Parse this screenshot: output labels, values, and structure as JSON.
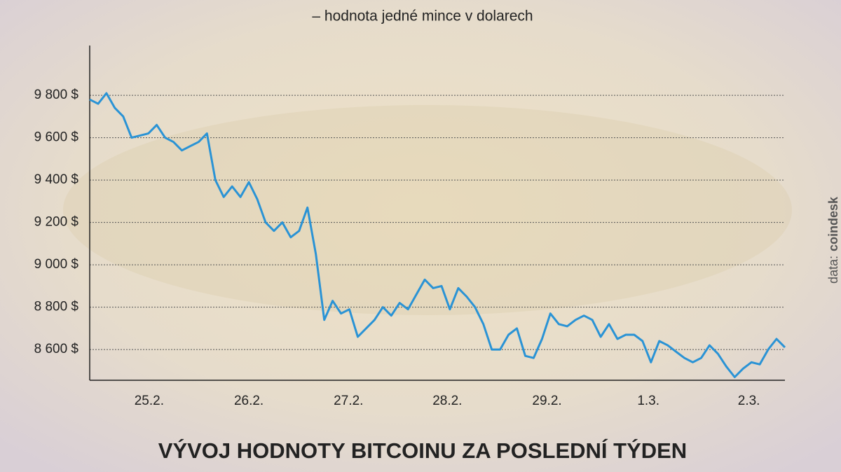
{
  "chart_data": {
    "type": "line",
    "title": "VÝVOJ HODNOTY BITCOINU ZA POSLEDNÍ TÝDEN",
    "subtitle": "– hodnota jedné mince v dolarech",
    "source_prefix": "data:",
    "source": "coindesk",
    "color": "#2a93d5",
    "grid": true,
    "ylim": [
      8455,
      10035
    ],
    "yticks": [
      {
        "value": 8600,
        "label": "8 600 $"
      },
      {
        "value": 8800,
        "label": "8 800 $"
      },
      {
        "value": 9000,
        "label": "9 000 $"
      },
      {
        "value": 9200,
        "label": "9 200 $"
      },
      {
        "value": 9400,
        "label": "9 400 $"
      },
      {
        "value": 9600,
        "label": "9 600 $"
      },
      {
        "value": 9800,
        "label": "9 800 $"
      }
    ],
    "xlim": [
      0,
      83
    ],
    "xticks": [
      {
        "value": 7.1,
        "label": "25.2."
      },
      {
        "value": 19,
        "label": "26.2."
      },
      {
        "value": 30.9,
        "label": "27.2."
      },
      {
        "value": 42.7,
        "label": "28.2."
      },
      {
        "value": 54.6,
        "label": "29.2."
      },
      {
        "value": 66.7,
        "label": "1.3."
      },
      {
        "value": 78.7,
        "label": "2.3."
      }
    ],
    "values": [
      9780,
      9760,
      9810,
      9740,
      9700,
      9600,
      9610,
      9620,
      9660,
      9600,
      9580,
      9540,
      9560,
      9580,
      9620,
      9400,
      9320,
      9370,
      9320,
      9390,
      9310,
      9200,
      9160,
      9200,
      9130,
      9160,
      9270,
      9050,
      8740,
      8830,
      8770,
      8790,
      8660,
      8700,
      8740,
      8800,
      8760,
      8820,
      8790,
      8860,
      8930,
      8890,
      8900,
      8790,
      8890,
      8850,
      8800,
      8720,
      8600,
      8600,
      8670,
      8700,
      8570,
      8560,
      8650,
      8770,
      8720,
      8710,
      8740,
      8760,
      8740,
      8660,
      8720,
      8650,
      8670,
      8670,
      8640,
      8540,
      8640,
      8620,
      8590,
      8560,
      8540,
      8560,
      8620,
      8580,
      8520,
      8470,
      8510,
      8540,
      8530,
      8600,
      8650,
      8610
    ]
  }
}
